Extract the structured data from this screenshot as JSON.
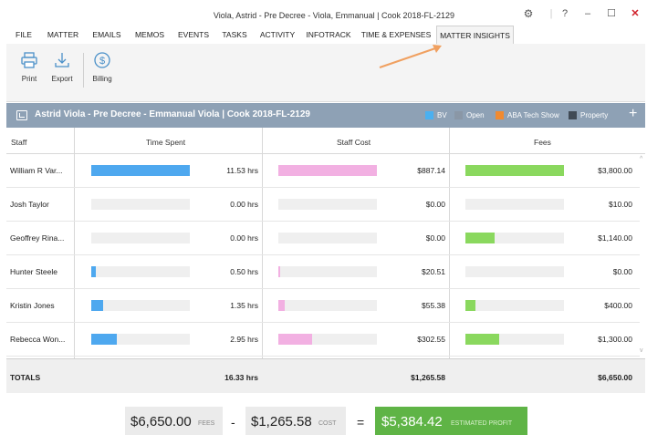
{
  "window": {
    "title": "Viola, Astrid - Pre Decree - Viola, Emmanual | Cook 2018-FL-2129",
    "help_glyph": "?",
    "min_glyph": "–",
    "max_glyph": "☐",
    "close_glyph": "✕"
  },
  "menu": [
    "FILE",
    "MATTER",
    "EMAILS",
    "MEMOS",
    "EVENTS",
    "TASKS",
    "ACTIVITY",
    "INFOTRACK",
    "TIME & EXPENSES",
    "MATTER INSIGHTS"
  ],
  "active_tab": "MATTER INSIGHTS",
  "toolbar": {
    "print_label": "Print",
    "export_label": "Export",
    "billing_label": "Billing"
  },
  "header": {
    "title": "Astrid Viola - Pre Decree - Emmanual Viola | Cook 2018-FL-2129",
    "legend": [
      {
        "label": "BV",
        "color": "#4ab0f0"
      },
      {
        "label": "Open",
        "color": "#8a97a6"
      },
      {
        "label": "ABA Tech Show",
        "color": "#f08a30"
      },
      {
        "label": "Property",
        "color": "#404a55"
      }
    ],
    "add_glyph": "+"
  },
  "columns": {
    "staff": "Staff",
    "time": "Time Spent",
    "cost": "Staff Cost",
    "fees": "Fees"
  },
  "colors": {
    "time_bar": "#4ea8ef",
    "cost_bar": "#f2b0e2",
    "fees_bar": "#8ad85e",
    "profit_bg": "#5fb446"
  },
  "rows": [
    {
      "name": "William R Var...",
      "time": "11.53 hrs",
      "time_frac": 1.0,
      "cost": "$887.14",
      "cost_frac": 1.0,
      "fees": "$3,800.00",
      "fees_frac": 1.0
    },
    {
      "name": "Josh Taylor",
      "time": "0.00 hrs",
      "time_frac": 0.0,
      "cost": "$0.00",
      "cost_frac": 0.0,
      "fees": "$10.00",
      "fees_frac": 0.0
    },
    {
      "name": "Geoffrey Rina...",
      "time": "0.00 hrs",
      "time_frac": 0.0,
      "cost": "$0.00",
      "cost_frac": 0.0,
      "fees": "$1,140.00",
      "fees_frac": 0.3
    },
    {
      "name": "Hunter  Steele",
      "time": "0.50 hrs",
      "time_frac": 0.043,
      "cost": "$20.51",
      "cost_frac": 0.023,
      "fees": "$0.00",
      "fees_frac": 0.0
    },
    {
      "name": "Kristin Jones",
      "time": "1.35 hrs",
      "time_frac": 0.117,
      "cost": "$55.38",
      "cost_frac": 0.062,
      "fees": "$400.00",
      "fees_frac": 0.105
    },
    {
      "name": "Rebecca Won...",
      "time": "2.95 hrs",
      "time_frac": 0.256,
      "cost": "$302.55",
      "cost_frac": 0.341,
      "fees": "$1,300.00",
      "fees_frac": 0.342
    }
  ],
  "totals": {
    "label": "TOTALS",
    "time": "16.33 hrs",
    "cost": "$1,265.58",
    "fees": "$6,650.00"
  },
  "summary": {
    "fees_value": "$6,650.00",
    "fees_label": "FEES",
    "minus": "-",
    "cost_value": "$1,265.58",
    "cost_label": "COST",
    "equals": "=",
    "profit_value": "$5,384.42",
    "profit_label": "ESTIMATED PROFIT"
  }
}
